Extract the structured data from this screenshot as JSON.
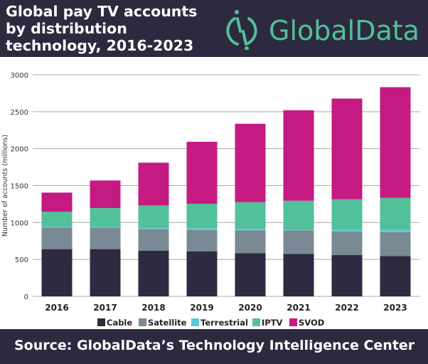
{
  "header": {
    "title": "Global pay TV accounts by distribution technology, 2016-2023",
    "brand": "GlobalData."
  },
  "footer": {
    "source": "Source:  GlobalData’s Technology Intelligence Center"
  },
  "colors": {
    "background_band": "#2d2a40",
    "brand": "#52c098"
  },
  "chart_data": {
    "type": "bar",
    "stacked": true,
    "title": "Global pay TV accounts by distribution technology, 2016-2023",
    "xlabel": "",
    "ylabel": "Number of accounts (millions)",
    "ylim": [
      0,
      3000
    ],
    "yticks": [
      0,
      500,
      1000,
      1500,
      2000,
      2500,
      3000
    ],
    "grid": true,
    "legend": "bottom",
    "categories": [
      "2016",
      "2017",
      "2018",
      "2019",
      "2020",
      "2021",
      "2022",
      "2023"
    ],
    "series": [
      {
        "name": "Cable",
        "color": "#2e2a40",
        "values": [
          640,
          640,
          617,
          608,
          585,
          575,
          559,
          547
        ]
      },
      {
        "name": "Satellite",
        "color": "#798a95",
        "values": [
          292,
          290,
          293,
          292,
          309,
          319,
          321,
          324
        ]
      },
      {
        "name": "Terrestrial",
        "color": "#5fc8d8",
        "values": [
          10,
          10,
          15,
          20,
          22,
          6,
          20,
          29
        ]
      },
      {
        "name": "IPTV",
        "color": "#52c098",
        "values": [
          203,
          256,
          306,
          334,
          360,
          395,
          414,
          434
        ]
      },
      {
        "name": "SVOD",
        "color": "#c41a82",
        "values": [
          260,
          373,
          579,
          839,
          1061,
          1225,
          1364,
          1498
        ]
      }
    ]
  }
}
